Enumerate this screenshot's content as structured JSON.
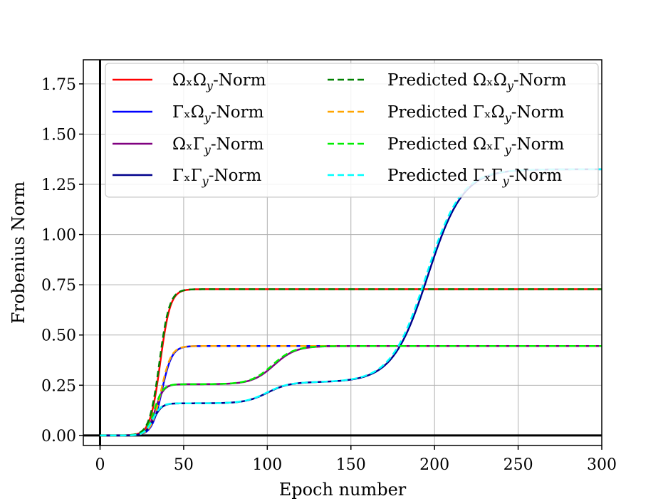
{
  "chart_data": {
    "type": "line",
    "xlabel": "Epoch number",
    "ylabel": "Frobenius Norm",
    "xlim": [
      -10,
      300
    ],
    "ylim": [
      -0.05,
      1.87
    ],
    "xticks": [
      0,
      50,
      100,
      150,
      200,
      250,
      300
    ],
    "yticks": [
      0.0,
      0.25,
      0.5,
      0.75,
      1.0,
      1.25,
      1.5,
      1.75
    ],
    "ytick_labels": [
      "0.00",
      "0.25",
      "0.50",
      "0.75",
      "1.00",
      "1.25",
      "1.50",
      "1.75"
    ],
    "grid": true,
    "legend_position": "top",
    "series": [
      {
        "key": "oo",
        "name_main": "ΩₓΩ",
        "name_sub": "y",
        "name_suffix": "-Norm",
        "color": "#ff0000",
        "dashed": false,
        "width": 2.5,
        "params": [
          [
            0.728,
            36,
            3.0
          ]
        ]
      },
      {
        "key": "go",
        "name_main": "ΓₓΩ",
        "name_sub": "y",
        "name_suffix": "-Norm",
        "color": "#0000ff",
        "dashed": false,
        "width": 2.5,
        "params": [
          [
            0.445,
            37,
            3.0
          ]
        ]
      },
      {
        "key": "og",
        "name_main": "ΩₓΓ",
        "name_sub": "y",
        "name_suffix": "-Norm",
        "color": "#800080",
        "dashed": false,
        "width": 2.5,
        "params": [
          [
            0.255,
            33,
            2.5
          ],
          [
            0.19,
            104,
            6.5
          ]
        ]
      },
      {
        "key": "gg",
        "name_main": "ΓₓΓ",
        "name_sub": "y",
        "name_suffix": "-Norm",
        "color": "#00008b",
        "dashed": false,
        "width": 2.5,
        "params": [
          [
            0.16,
            32,
            2.5
          ],
          [
            0.105,
            100,
            6.5
          ],
          [
            1.06,
            196,
            10.5
          ]
        ]
      },
      {
        "key": "poo",
        "name_prefix": "Predicted ",
        "name_main": "ΩₓΩ",
        "name_sub": "y",
        "name_suffix": "-Norm",
        "color": "#008000",
        "dashed": true,
        "width": 2.5,
        "params": [
          [
            0.728,
            35.5,
            3.0
          ]
        ]
      },
      {
        "key": "pgo",
        "name_prefix": "Predicted ",
        "name_main": "ΓₓΩ",
        "name_sub": "y",
        "name_suffix": "-Norm",
        "color": "#ffa500",
        "dashed": true,
        "width": 2.5,
        "params": [
          [
            0.445,
            36.5,
            3.0
          ]
        ]
      },
      {
        "key": "pog",
        "name_prefix": "Predicted ",
        "name_main": "ΩₓΓ",
        "name_sub": "y",
        "name_suffix": "-Norm",
        "color": "#00ee00",
        "dashed": true,
        "width": 2.5,
        "params": [
          [
            0.255,
            32.5,
            2.5
          ],
          [
            0.19,
            103,
            6.5
          ]
        ]
      },
      {
        "key": "pgg",
        "name_prefix": "Predicted ",
        "name_main": "ΓₓΓ",
        "name_sub": "y",
        "name_suffix": "-Norm",
        "color": "#00ffff",
        "dashed": true,
        "width": 2.5,
        "params": [
          [
            0.16,
            31.5,
            2.5
          ],
          [
            0.105,
            99.5,
            6.5
          ],
          [
            1.06,
            195,
            10.5
          ]
        ]
      }
    ],
    "note": "Each series is a sum of logistic steps: y(x) = Σ a / (1 + exp(-(x - c)/s)), params = [a, c, s] in data units."
  }
}
